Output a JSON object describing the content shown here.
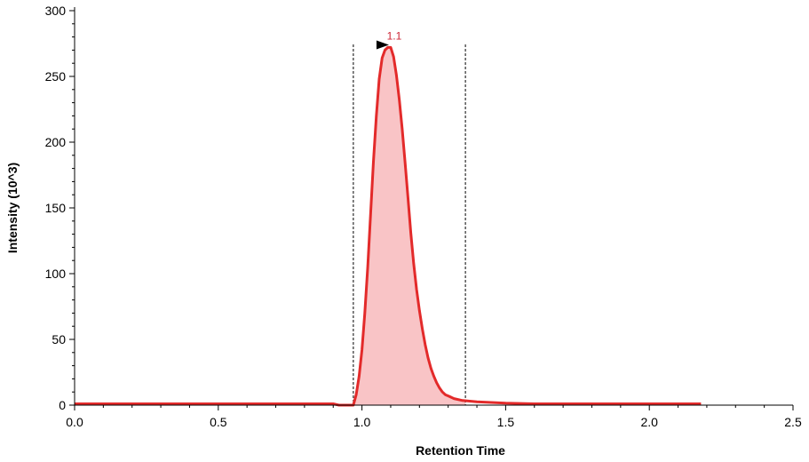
{
  "chart_data": {
    "type": "area",
    "title": "",
    "xlabel": "Retention Time",
    "ylabel": "Intensity (10^3)",
    "xlim": [
      0.0,
      2.5
    ],
    "ylim": [
      0,
      300
    ],
    "x_ticks": [
      "0.0",
      "0.5",
      "1.0",
      "1.5",
      "2.0",
      "2.5"
    ],
    "y_ticks": [
      "0",
      "50",
      "100",
      "150",
      "200",
      "250",
      "300"
    ],
    "grid": false,
    "series": [
      {
        "color": "#e32a2a",
        "fill": "#f9c4c6",
        "x": [
          0.0,
          0.9,
          0.92,
          0.97,
          0.98,
          0.99,
          1.0,
          1.01,
          1.02,
          1.03,
          1.04,
          1.05,
          1.06,
          1.07,
          1.08,
          1.09,
          1.1,
          1.11,
          1.12,
          1.13,
          1.14,
          1.15,
          1.16,
          1.17,
          1.18,
          1.19,
          1.2,
          1.21,
          1.22,
          1.23,
          1.24,
          1.25,
          1.26,
          1.27,
          1.28,
          1.29,
          1.3,
          1.32,
          1.35,
          1.4,
          1.5,
          1.6,
          2.0,
          2.18
        ],
        "y": [
          1,
          1,
          0,
          0,
          8,
          22,
          42,
          70,
          105,
          145,
          185,
          220,
          248,
          264,
          270,
          272,
          272,
          265,
          251,
          232,
          210,
          185,
          158,
          131,
          108,
          88,
          72,
          58,
          46,
          36,
          28,
          22,
          17,
          13,
          10,
          8,
          7,
          5,
          3.5,
          2.5,
          1.5,
          1,
          1,
          1
        ]
      }
    ],
    "integration_bounds": [
      0.97,
      1.36
    ],
    "fill_range": [
      0.97,
      1.36
    ],
    "peak_annotation": {
      "label": "1.1",
      "x": 1.1,
      "y": 272,
      "color": "#cc2233"
    }
  }
}
